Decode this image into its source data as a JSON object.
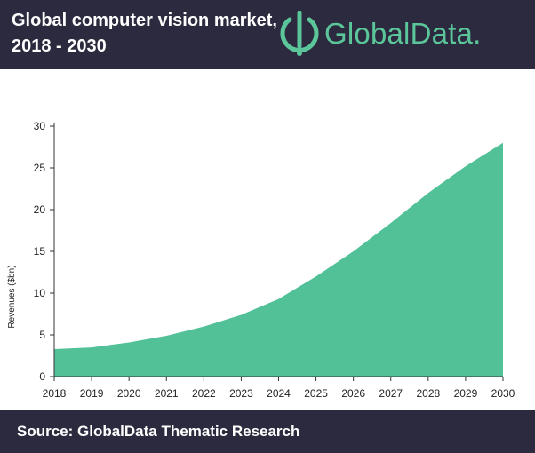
{
  "header": {
    "title_line1": "Global computer vision market,",
    "title_line2": "2018 - 2030",
    "brand": "GlobalData.",
    "background_color": "#2b2a3e",
    "brand_color": "#5cc69b",
    "logo_icon": "globaldata-logo-icon"
  },
  "footer": {
    "source": "Source:  GlobalData Thematic Research"
  },
  "chart_data": {
    "type": "area",
    "title": "",
    "xlabel": "",
    "ylabel": "Revenues ($bn)",
    "x": [
      "2018",
      "2019",
      "2020",
      "2021",
      "2022",
      "2023",
      "2024",
      "2025",
      "2026",
      "2027",
      "2028",
      "2029",
      "2030"
    ],
    "values": [
      3.3,
      3.5,
      4.1,
      4.9,
      6.0,
      7.4,
      9.3,
      12.0,
      15.0,
      18.4,
      22.0,
      25.2,
      28.0
    ],
    "yticks": [
      "0",
      "5",
      "10",
      "15",
      "20",
      "25",
      "30"
    ],
    "ylim": [
      0,
      30
    ],
    "grid": false,
    "legend": "none",
    "fill_color": "#52c198"
  }
}
